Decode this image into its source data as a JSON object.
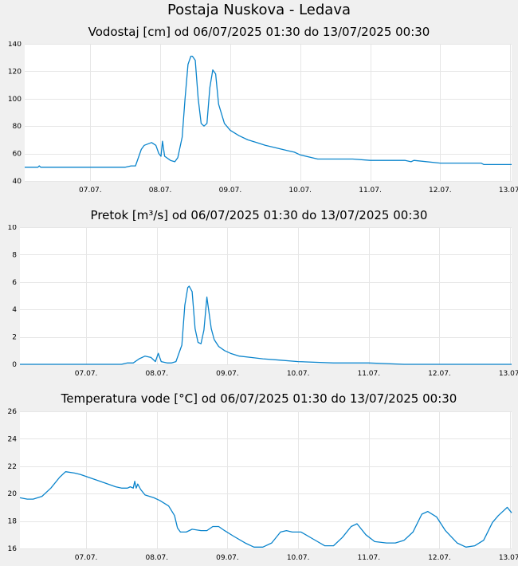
{
  "page_title": "Postaja Nuskova - Ledava",
  "colors": {
    "line": "#0a84cc",
    "background": "#f0f0f0",
    "plot": "#ffffff",
    "grid": "#e6e6e6"
  },
  "chart_data": [
    {
      "type": "line",
      "title": "Vodostaj [cm] od 06/07/2025 01:30 do 13/07/2025 00:30",
      "xlabel": "",
      "ylabel": "",
      "ylim": [
        40,
        140
      ],
      "yticks": [
        40,
        60,
        80,
        100,
        120,
        140
      ],
      "xlim": [
        "06/07/2025 01:30",
        "13/07/2025 00:30"
      ],
      "xticks": [
        "07.07.",
        "08.07.",
        "09.07.",
        "10.07.",
        "11.07.",
        "12.07.",
        "13.07."
      ],
      "grid": true,
      "series": [
        {
          "x": [
            "06/07/2025 01:30",
            "06/07/2025 06:00",
            "06/07/2025 06:30",
            "06/07/2025 07:00",
            "06/07/2025 12:00",
            "07/07/2025 12:00",
            "07/07/2025 14:00",
            "07/07/2025 15:30",
            "07/07/2025 17:30",
            "07/07/2025 18:30",
            "07/07/2025 21:00",
            "07/07/2025 22:30",
            "07/07/2025 23:30",
            "08/07/2025 00:15",
            "08/07/2025 00:45",
            "08/07/2025 01:30",
            "08/07/2025 03:30",
            "08/07/2025 05:00",
            "08/07/2025 06:00",
            "08/07/2025 07:30",
            "08/07/2025 08:30",
            "08/07/2025 09:30",
            "08/07/2025 10:30",
            "08/07/2025 11:00",
            "08/07/2025 12:00",
            "08/07/2025 13:00",
            "08/07/2025 14:00",
            "08/07/2025 15:00",
            "08/07/2025 16:00",
            "08/07/2025 17:00",
            "08/07/2025 18:00",
            "08/07/2025 19:00",
            "08/07/2025 20:00",
            "08/07/2025 22:00",
            "09/07/2025 00:00",
            "09/07/2025 03:00",
            "09/07/2025 06:00",
            "09/07/2025 09:00",
            "09/07/2025 12:00",
            "09/07/2025 16:00",
            "09/07/2025 20:00",
            "09/07/2025 22:00",
            "10/07/2025 00:00",
            "10/07/2025 06:00",
            "10/07/2025 12:00",
            "10/07/2025 18:00",
            "11/07/2025 00:00",
            "11/07/2025 12:00",
            "11/07/2025 14:00",
            "11/07/2025 15:00",
            "12/07/2025 00:00",
            "12/07/2025 12:00",
            "12/07/2025 14:00",
            "12/07/2025 15:00",
            "13/07/2025 00:30"
          ],
          "y": [
            50,
            50,
            51,
            50,
            50,
            50,
            51,
            51,
            63,
            66,
            68,
            66,
            60,
            58,
            69,
            58,
            55,
            54,
            57,
            72,
            100,
            125,
            131,
            131,
            128,
            100,
            82,
            80,
            82,
            108,
            121,
            118,
            96,
            82,
            77,
            73,
            70,
            68,
            66,
            64,
            62,
            61,
            59,
            56,
            56,
            56,
            55,
            55,
            54,
            55,
            53,
            53,
            53,
            52,
            52
          ]
        }
      ]
    },
    {
      "type": "line",
      "title": "Pretok [m³/s] od 06/07/2025 01:30 do 13/07/2025 00:30",
      "xlabel": "",
      "ylabel": "",
      "ylim": [
        0,
        10
      ],
      "yticks": [
        0,
        2,
        4,
        6,
        8,
        10
      ],
      "xlim": [
        "06/07/2025 01:30",
        "13/07/2025 00:30"
      ],
      "xticks": [
        "07.07.",
        "08.07.",
        "09.07.",
        "10.07.",
        "11.07.",
        "12.07.",
        "13.07."
      ],
      "grid": true,
      "series": [
        {
          "x": [
            "06/07/2025 01:30",
            "06/07/2025 07:00",
            "07/07/2025 12:00",
            "07/07/2025 14:00",
            "07/07/2025 16:00",
            "07/07/2025 18:00",
            "07/07/2025 20:00",
            "07/07/2025 22:00",
            "07/07/2025 23:30",
            "08/07/2025 00:30",
            "08/07/2025 01:30",
            "08/07/2025 03:30",
            "08/07/2025 05:00",
            "08/07/2025 06:30",
            "08/07/2025 08:30",
            "08/07/2025 09:30",
            "08/07/2025 10:30",
            "08/07/2025 11:00",
            "08/07/2025 12:00",
            "08/07/2025 13:00",
            "08/07/2025 14:00",
            "08/07/2025 15:00",
            "08/07/2025 16:00",
            "08/07/2025 17:00",
            "08/07/2025 18:30",
            "08/07/2025 19:30",
            "08/07/2025 21:00",
            "08/07/2025 23:00",
            "09/07/2025 01:00",
            "09/07/2025 04:00",
            "09/07/2025 08:00",
            "09/07/2025 12:00",
            "09/07/2025 18:00",
            "10/07/2025 00:00",
            "10/07/2025 12:00",
            "11/07/2025 00:00",
            "11/07/2025 12:00",
            "12/07/2025 00:00",
            "13/07/2025 00:30"
          ],
          "y": [
            0.0,
            0.0,
            0.0,
            0.1,
            0.1,
            0.4,
            0.6,
            0.5,
            0.2,
            0.8,
            0.2,
            0.1,
            0.1,
            0.2,
            1.4,
            4.3,
            5.6,
            5.7,
            5.3,
            2.6,
            1.6,
            1.5,
            2.5,
            4.9,
            2.6,
            1.8,
            1.3,
            1.0,
            0.8,
            0.6,
            0.5,
            0.4,
            0.3,
            0.2,
            0.1,
            0.1,
            0.0,
            0.0,
            0.0
          ]
        }
      ]
    },
    {
      "type": "line",
      "title": "Temperatura vode [°C] od 06/07/2025 01:30 do 13/07/2025 00:30",
      "xlabel": "",
      "ylabel": "",
      "ylim": [
        16,
        26
      ],
      "yticks": [
        16,
        18,
        20,
        22,
        24,
        26
      ],
      "xlim": [
        "06/07/2025 01:30",
        "13/07/2025 00:30"
      ],
      "xticks": [
        "07.07.",
        "08.07.",
        "09.07.",
        "10.07.",
        "11.07.",
        "12.07.",
        "13.07."
      ],
      "grid": true,
      "series": [
        {
          "x": [
            "06/07/2025 01:30",
            "06/07/2025 04:00",
            "06/07/2025 06:00",
            "06/07/2025 09:00",
            "06/07/2025 12:00",
            "06/07/2025 15:00",
            "06/07/2025 17:00",
            "06/07/2025 20:00",
            "06/07/2025 22:00",
            "07/07/2025 02:00",
            "07/07/2025 06:00",
            "07/07/2025 10:00",
            "07/07/2025 12:00",
            "07/07/2025 14:00",
            "07/07/2025 15:00",
            "07/07/2025 16:00",
            "07/07/2025 16:30",
            "07/07/2025 17:00",
            "07/07/2025 17:30",
            "07/07/2025 18:30",
            "07/07/2025 20:00",
            "07/07/2025 23:00",
            "08/07/2025 01:00",
            "08/07/2025 04:00",
            "08/07/2025 06:00",
            "08/07/2025 07:00",
            "08/07/2025 08:00",
            "08/07/2025 10:00",
            "08/07/2025 12:00",
            "08/07/2025 15:00",
            "08/07/2025 17:00",
            "08/07/2025 19:00",
            "08/07/2025 21:00",
            "08/07/2025 23:00",
            "09/07/2025 02:00",
            "09/07/2025 06:00",
            "09/07/2025 09:00",
            "09/07/2025 12:00",
            "09/07/2025 15:00",
            "09/07/2025 18:00",
            "09/07/2025 20:00",
            "09/07/2025 22:00",
            "10/07/2025 01:00",
            "10/07/2025 05:00",
            "10/07/2025 09:00",
            "10/07/2025 12:00",
            "10/07/2025 15:00",
            "10/07/2025 18:00",
            "10/07/2025 20:00",
            "10/07/2025 23:00",
            "11/07/2025 02:00",
            "11/07/2025 06:00",
            "11/07/2025 09:00",
            "11/07/2025 12:00",
            "11/07/2025 15:00",
            "11/07/2025 18:00",
            "11/07/2025 20:00",
            "11/07/2025 23:00",
            "12/07/2025 02:00",
            "12/07/2025 06:00",
            "12/07/2025 09:00",
            "12/07/2025 12:00",
            "12/07/2025 15:00",
            "12/07/2025 18:00",
            "12/07/2025 20:00",
            "12/07/2025 23:00",
            "13/07/2025 00:30"
          ],
          "y": [
            19.7,
            19.6,
            19.6,
            19.8,
            20.4,
            21.2,
            21.6,
            21.5,
            21.4,
            21.1,
            20.8,
            20.5,
            20.4,
            20.4,
            20.5,
            20.4,
            20.9,
            20.4,
            20.7,
            20.3,
            19.9,
            19.7,
            19.5,
            19.1,
            18.4,
            17.5,
            17.2,
            17.2,
            17.4,
            17.3,
            17.3,
            17.6,
            17.6,
            17.3,
            16.9,
            16.4,
            16.1,
            16.1,
            16.4,
            17.2,
            17.3,
            17.2,
            17.2,
            16.7,
            16.2,
            16.2,
            16.8,
            17.6,
            17.8,
            17.0,
            16.5,
            16.4,
            16.4,
            16.6,
            17.2,
            18.5,
            18.7,
            18.3,
            17.3,
            16.4,
            16.1,
            16.2,
            16.6,
            17.9,
            18.4,
            19.0,
            18.6
          ]
        }
      ]
    }
  ]
}
